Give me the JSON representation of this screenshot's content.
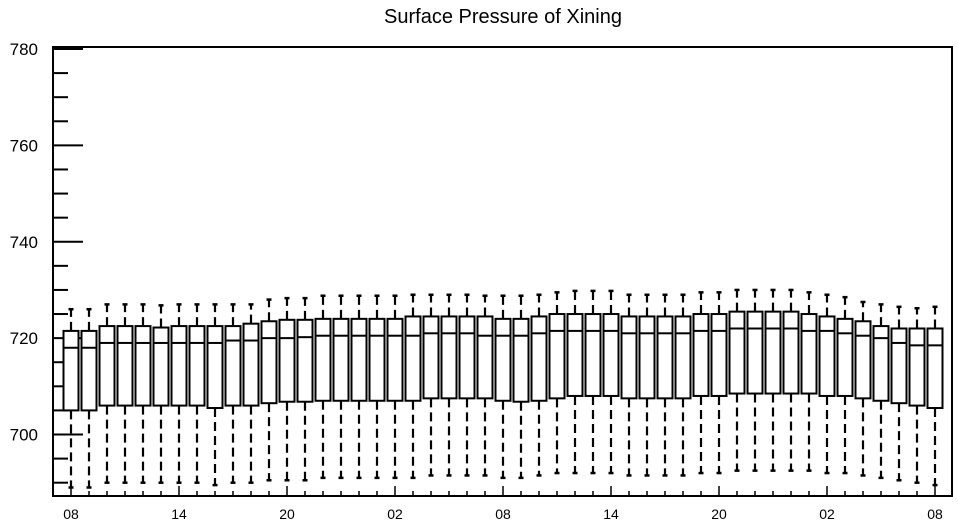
{
  "chart_data": {
    "type": "box",
    "title": "Surface Pressure of Xining",
    "xlabel": "",
    "ylabel": "",
    "ylim": [
      687.5,
      780
    ],
    "y_ticks": [
      700,
      720,
      740,
      760,
      780
    ],
    "x_tick_labels": [
      "08",
      "14",
      "20",
      "02",
      "08",
      "14",
      "20",
      "02",
      "08"
    ],
    "x_tick_positions": [
      0,
      6,
      12,
      18,
      24,
      30,
      36,
      42,
      48
    ],
    "grid": false,
    "boxes": {
      "q1": [
        705,
        705,
        706,
        706,
        706,
        706,
        706,
        706,
        705.5,
        706,
        706,
        706.5,
        706.8,
        706.8,
        707,
        707,
        707,
        707,
        707,
        707,
        707.5,
        707.5,
        707.5,
        707.5,
        707,
        706.8,
        707,
        707.5,
        708,
        708,
        708,
        707.5,
        707.5,
        707.5,
        707.5,
        708,
        708,
        708.5,
        708.5,
        708.5,
        708.5,
        708.5,
        708,
        708,
        707.5,
        707,
        706.5,
        706,
        705.5
      ],
      "median": [
        718,
        718,
        719,
        719,
        719,
        719,
        719,
        719,
        719,
        719.5,
        719.5,
        720,
        720,
        720.2,
        720.5,
        720.5,
        720.5,
        720.5,
        720.5,
        720.5,
        721,
        721,
        721,
        720.5,
        720.5,
        720.5,
        721,
        721.5,
        721.5,
        721.5,
        721.5,
        721,
        721,
        721,
        721,
        721.5,
        721.5,
        722,
        722,
        722,
        722,
        721.5,
        721.5,
        721,
        720.5,
        720,
        719,
        718.5,
        718.5
      ],
      "q3": [
        721.5,
        721.5,
        722.5,
        722.5,
        722.5,
        722.2,
        722.5,
        722.5,
        722.5,
        722.5,
        723,
        723.5,
        723.8,
        723.8,
        724,
        724,
        724,
        724,
        724,
        724.5,
        724.5,
        724.5,
        724.5,
        724.5,
        724,
        724,
        724.5,
        725,
        725,
        725,
        725,
        724.5,
        724.5,
        724.5,
        724.5,
        725,
        725,
        725.5,
        725.5,
        725.5,
        725.5,
        725,
        724.5,
        724,
        723.5,
        722.5,
        722,
        722,
        722
      ],
      "upper_whisker": [
        726,
        726,
        727,
        727,
        727,
        726.8,
        727,
        727,
        727,
        727,
        727,
        728,
        728.3,
        728.3,
        728.8,
        728.8,
        728.8,
        728.8,
        728.8,
        729,
        729,
        729,
        729,
        728.8,
        728.8,
        728.8,
        729,
        729.5,
        729.8,
        729.8,
        729.8,
        729,
        729,
        729,
        729,
        729.5,
        729.5,
        730,
        730,
        730,
        730,
        729.5,
        729,
        728.5,
        727.5,
        727,
        726.5,
        726.2,
        726.5
      ],
      "lower_whisker": [
        689,
        689,
        690,
        690,
        690,
        690,
        690,
        690,
        689.5,
        690,
        690,
        690.5,
        690.5,
        690.5,
        691,
        691,
        691,
        691,
        691,
        691,
        691.5,
        691.5,
        691.5,
        691.5,
        691,
        691,
        691.5,
        692,
        692,
        692,
        692,
        691.5,
        691.5,
        691.5,
        691.5,
        692,
        692,
        692.5,
        692.5,
        692.5,
        692.5,
        692.5,
        692,
        692,
        691.5,
        691,
        690.5,
        690,
        689.5
      ]
    }
  }
}
